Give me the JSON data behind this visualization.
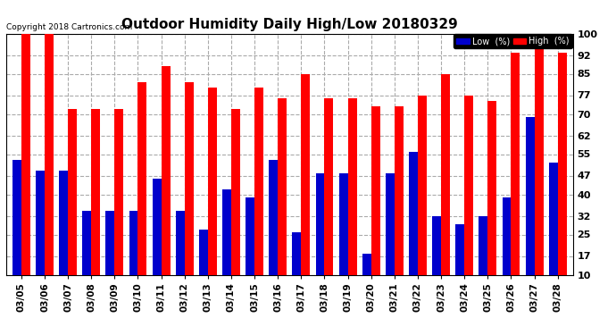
{
  "title": "Outdoor Humidity Daily High/Low 20180329",
  "copyright": "Copyright 2018 Cartronics.com",
  "dates": [
    "03/05",
    "03/06",
    "03/07",
    "03/08",
    "03/09",
    "03/10",
    "03/11",
    "03/12",
    "03/13",
    "03/14",
    "03/15",
    "03/16",
    "03/17",
    "03/18",
    "03/19",
    "03/20",
    "03/21",
    "03/22",
    "03/23",
    "03/24",
    "03/25",
    "03/26",
    "03/27",
    "03/28"
  ],
  "high": [
    100,
    100,
    72,
    72,
    72,
    82,
    88,
    82,
    80,
    72,
    80,
    76,
    85,
    76,
    76,
    73,
    73,
    77,
    85,
    77,
    75,
    93,
    100,
    93
  ],
  "low": [
    53,
    49,
    49,
    34,
    34,
    34,
    46,
    34,
    27,
    42,
    39,
    53,
    26,
    48,
    48,
    18,
    48,
    56,
    32,
    29,
    32,
    39,
    69,
    52
  ],
  "high_color": "#ff0000",
  "low_color": "#0000cc",
  "bg_color": "#ffffff",
  "plot_bg_color": "#ffffff",
  "grid_color": "#aaaaaa",
  "ylim_min": 10,
  "ylim_max": 100,
  "yticks": [
    10,
    17,
    25,
    32,
    40,
    47,
    55,
    62,
    70,
    77,
    85,
    92,
    100
  ],
  "title_fontsize": 11,
  "bar_width": 0.38,
  "legend_low_label": "Low  (%)",
  "legend_high_label": "High  (%)"
}
